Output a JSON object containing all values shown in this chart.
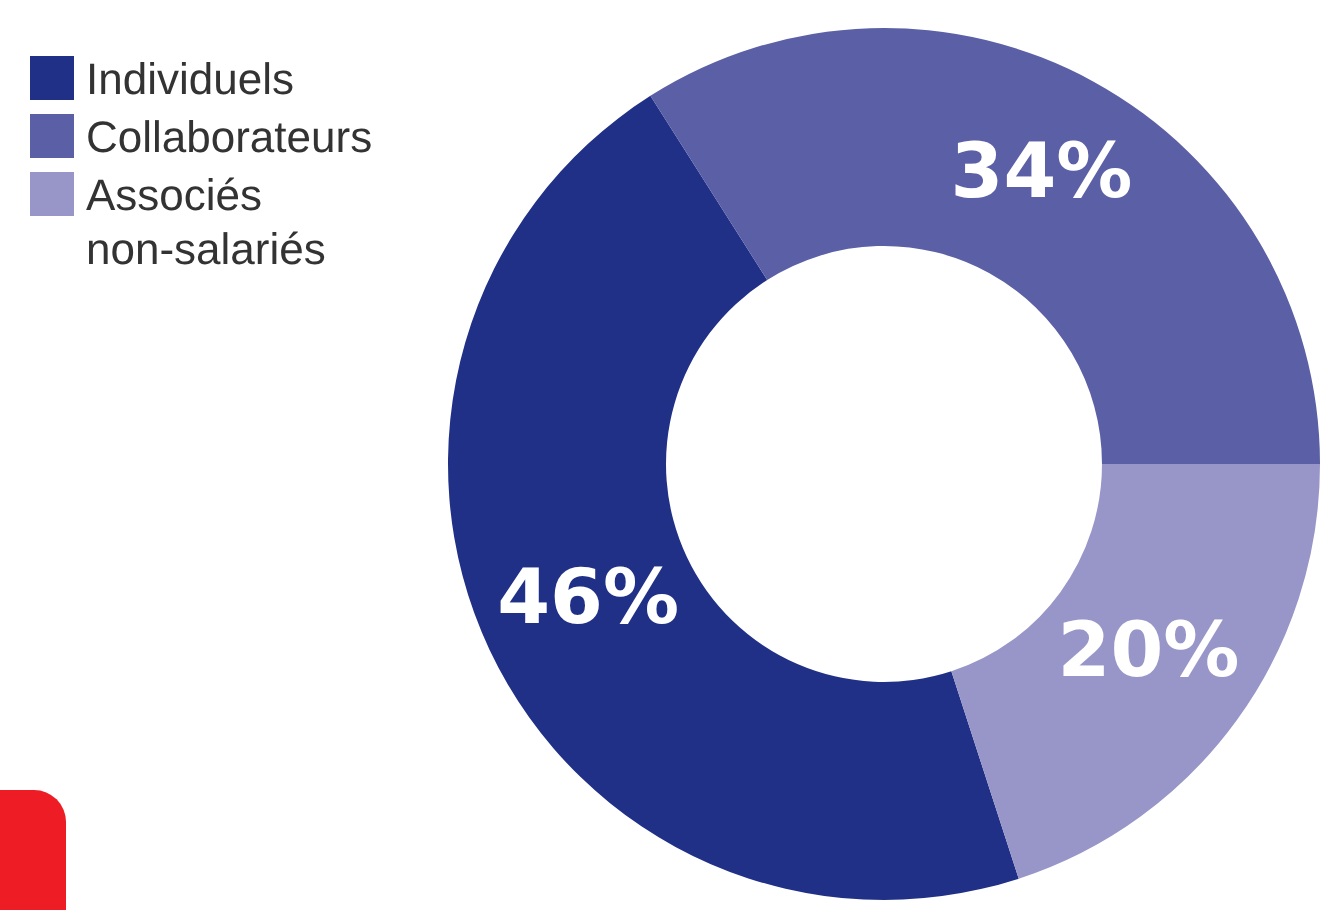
{
  "chart_data": {
    "type": "donut",
    "categories": [
      "Individuels",
      "Collaborateurs",
      "Associés non-salariés"
    ],
    "values": [
      46,
      34,
      20
    ],
    "colors": [
      "#213087",
      "#5a5fa6",
      "#9896c8"
    ],
    "value_labels": [
      "46%",
      "34%",
      "20%"
    ],
    "legend": "top left"
  }
}
